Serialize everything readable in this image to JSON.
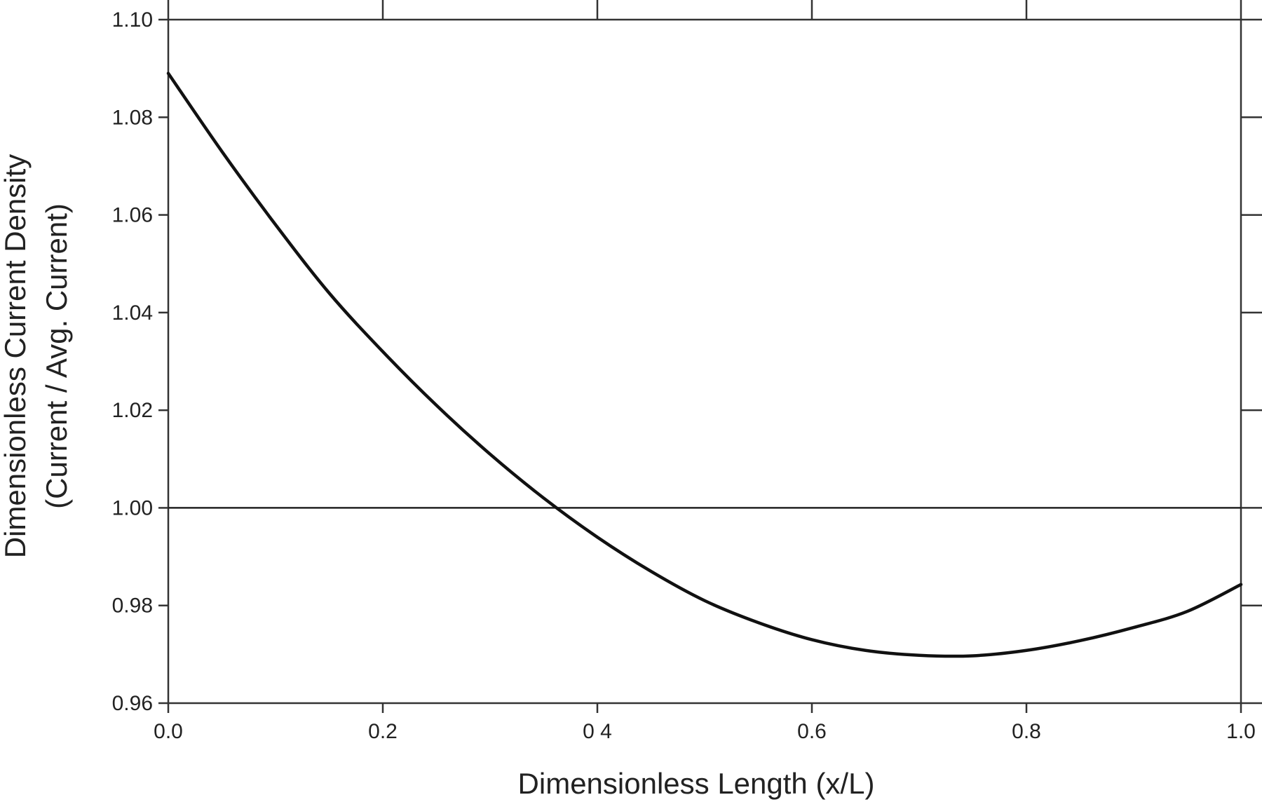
{
  "chart_data": {
    "type": "line",
    "title": "",
    "xlabel": "Dimensionless Length (x/L)",
    "ylabel_lines": [
      "Dimensionless Current Density",
      "(Current / Avg. Current)"
    ],
    "xlim": [
      0.0,
      1.0
    ],
    "ylim": [
      0.96,
      1.1
    ],
    "x_ticks": [
      0.0,
      0.2,
      0.4,
      0.6,
      0.8,
      1.0
    ],
    "x_tick_labels": [
      "0.0",
      "0.2",
      "0 4",
      "0.6",
      "0.8",
      "1.0"
    ],
    "y_ticks": [
      0.96,
      0.98,
      1.0,
      1.02,
      1.04,
      1.06,
      1.08,
      1.1
    ],
    "y_tick_labels": [
      "0.96",
      "0.98",
      "1.00",
      "1.02",
      "1.04",
      "1.06",
      "1.08",
      "1.10"
    ],
    "grid": false,
    "legend": "none",
    "reference_line": {
      "y": 1.0
    },
    "series": [
      {
        "x": [
          0.0,
          0.05,
          0.1,
          0.15,
          0.2,
          0.25,
          0.3,
          0.35,
          0.4,
          0.45,
          0.5,
          0.55,
          0.6,
          0.65,
          0.7,
          0.75,
          0.8,
          0.85,
          0.9,
          0.95,
          1.0
        ],
        "y": [
          1.089,
          1.073,
          1.058,
          1.044,
          1.032,
          1.021,
          1.011,
          1.002,
          0.994,
          0.987,
          0.981,
          0.9765,
          0.973,
          0.9708,
          0.9698,
          0.9697,
          0.9708,
          0.9728,
          0.9755,
          0.9788,
          0.9843
        ],
        "color": "#111111"
      }
    ]
  }
}
